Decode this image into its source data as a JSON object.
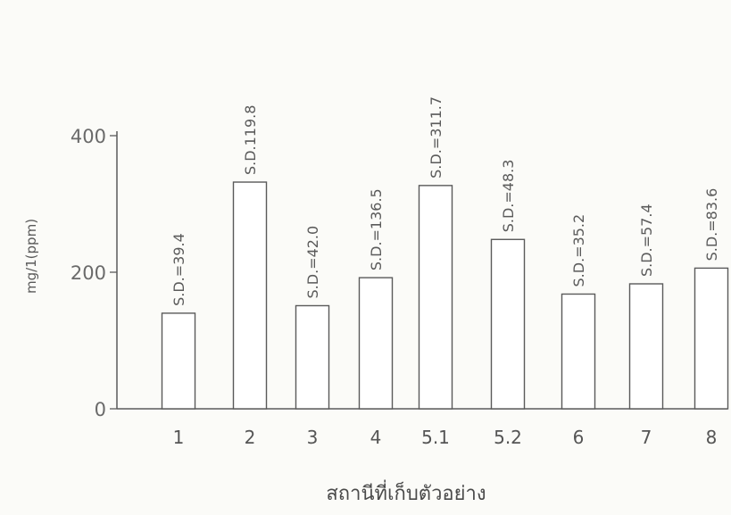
{
  "chart_data": {
    "type": "bar",
    "title": "",
    "xlabel": "สถานีที่เก็บตัวอย่าง",
    "ylabel": "mg/1(ppm)",
    "ylim": [
      0,
      400
    ],
    "yticks": [
      "0",
      "200",
      "400"
    ],
    "grid": false,
    "categories": [
      "1",
      "2",
      "3",
      "4",
      "5.1",
      "5.2",
      "6",
      "7",
      "8"
    ],
    "values": [
      140,
      332,
      151,
      192,
      327,
      248,
      168,
      183,
      206
    ],
    "annotations": [
      "S.D.=39.4",
      "S.D.119.8",
      "S.D.=42.0",
      "S.D.=136.5",
      "S.D.=311.7",
      "S.D.=48.3",
      "S.D.=35.2",
      "S.D.=57.4",
      "S.D.=83.6"
    ],
    "colors": {
      "bar_fill": "#ffffff",
      "ink": "#5a5a5a"
    }
  }
}
